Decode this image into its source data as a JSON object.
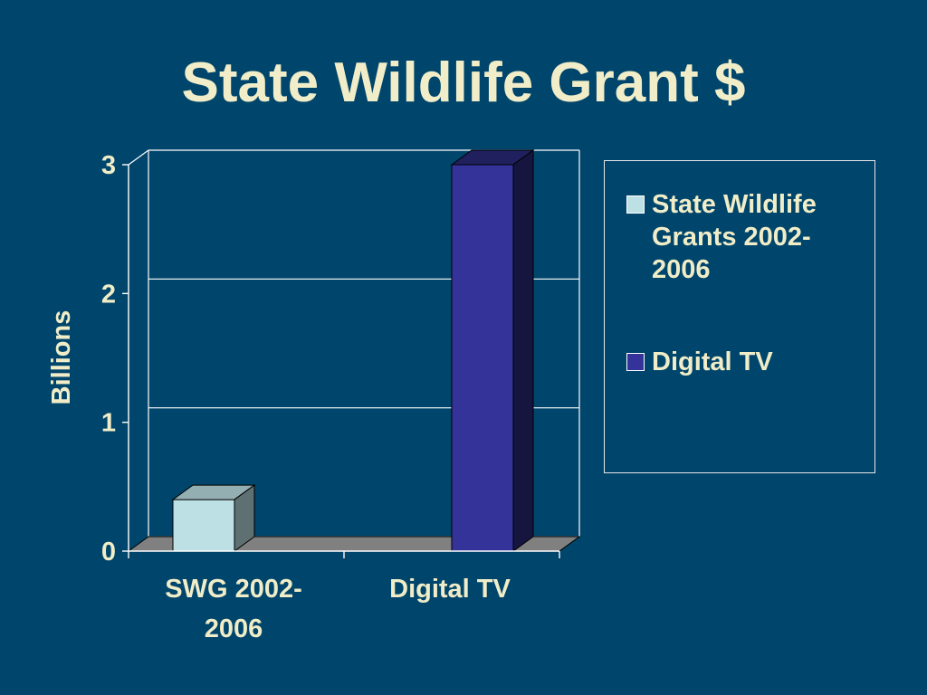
{
  "slide": {
    "title": "State Wildlife Grant $"
  },
  "chart_data": {
    "type": "bar",
    "title": "State Wildlife Grant $",
    "ylabel": "Billions",
    "xlabel": "",
    "ylim": [
      0,
      3
    ],
    "yticks": [
      "0",
      "1",
      "2",
      "3"
    ],
    "categories": [
      "SWG 2002-2006",
      "Digital TV"
    ],
    "category_labels": [
      [
        "SWG 2002-",
        "2006"
      ],
      [
        "Digital TV"
      ]
    ],
    "series": [
      {
        "name": "State Wildlife Grants 2002-2006",
        "values": [
          0.4,
          0
        ],
        "color": "#bde0e4"
      },
      {
        "name": "Digital TV",
        "values": [
          0,
          3.0
        ],
        "color": "#333399"
      }
    ],
    "grid": true,
    "legend": {
      "position": "right",
      "labels": [
        [
          "State Wildlife",
          "Grants 2002-",
          "2006"
        ],
        [
          "Digital TV"
        ]
      ]
    },
    "style": {
      "text_color": "#f0edc8",
      "axis_color": "#ffffff",
      "floor_color": "#808080"
    }
  }
}
